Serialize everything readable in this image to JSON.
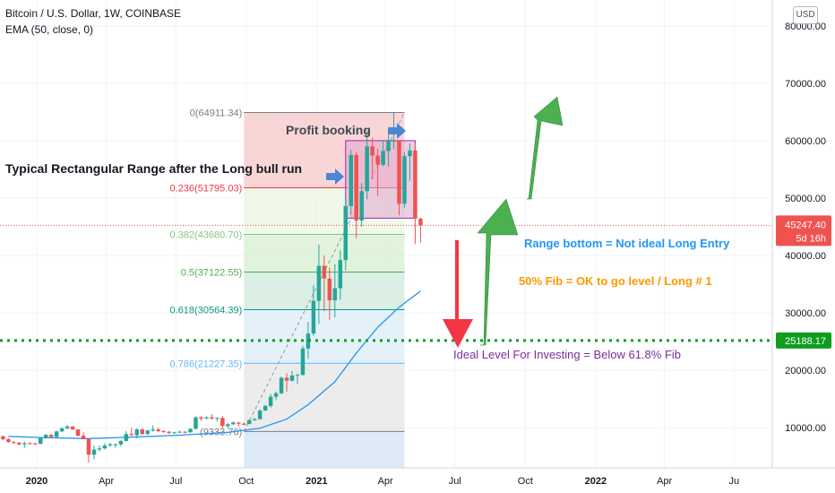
{
  "header": {
    "title": "Bitcoin / U.S. Dollar, 1W, COINBASE",
    "indicator": "EMA (50, close, 0)",
    "currency": "USD"
  },
  "colors": {
    "up": "#26a69a",
    "down": "#ef5350",
    "ema": "#2196f3",
    "green_arrow": "#4caf50",
    "red_arrow": "#f23645",
    "blue_note": "#2196f3",
    "orange_note": "#ff9800",
    "purple_note": "#7b2d9e",
    "ideal_line": "#0f9d1f"
  },
  "chart_data": {
    "type": "candlestick",
    "y_axis": {
      "range": [
        3000,
        84500
      ],
      "ticks": [
        10000,
        20000,
        30000,
        40000,
        50000,
        60000,
        70000,
        80000
      ],
      "tick_labels": [
        "10000.00",
        "20000.00",
        "30000.00",
        "40000.00",
        "50000.00",
        "60000.00",
        "70000.00",
        "80000.00"
      ]
    },
    "x_axis": {
      "ticks": [
        {
          "label": "2020",
          "date": "2020-01-01",
          "bold": true
        },
        {
          "label": "Apr",
          "date": "2020-04-01"
        },
        {
          "label": "Jul",
          "date": "2020-07-01"
        },
        {
          "label": "Oct",
          "date": "2020-10-01"
        },
        {
          "label": "2021",
          "date": "2021-01-01",
          "bold": true
        },
        {
          "label": "Apr",
          "date": "2021-04-01"
        },
        {
          "label": "Jul",
          "date": "2021-07-01"
        },
        {
          "label": "Oct",
          "date": "2021-10-01"
        },
        {
          "label": "2022",
          "date": "2022-01-01",
          "bold": true
        },
        {
          "label": "Apr",
          "date": "2022-04-01"
        },
        {
          "label": "Ju",
          "date": "2022-07-01"
        }
      ]
    },
    "price_label": {
      "value": "45247.40",
      "sub": "5d 16h"
    },
    "ideal_level": {
      "value": 25188.17,
      "label": "25188.17"
    },
    "fib": {
      "start_date": "2020-09-28",
      "end_date": "2021-04-26",
      "levels": [
        {
          "ratio": "0",
          "price": 64911.34,
          "label": "0(64911.34)",
          "color": "#787b86"
        },
        {
          "ratio": "0.236",
          "price": 51795.03,
          "label": "0.236(51795.03)",
          "color": "#f23645"
        },
        {
          "ratio": "0.382",
          "price": 43680.7,
          "label": "0.382(43680.70)",
          "color": "#81c784"
        },
        {
          "ratio": "0.5",
          "price": 37122.55,
          "label": "0.5(37122.55)",
          "color": "#4caf50"
        },
        {
          "ratio": "0.618",
          "price": 30564.39,
          "label": "0.618(30564.39)",
          "color": "#089981"
        },
        {
          "ratio": "0.786",
          "price": 21227.35,
          "label": "0.786(21227.35)",
          "color": "#64b5f6"
        },
        {
          "ratio": "1",
          "price": 9333.76,
          "label": "(9333.76)",
          "color": "#787b86"
        }
      ]
    },
    "range_box": {
      "start_date": "2021-02-08",
      "end_date": "2021-05-10",
      "top": 60000,
      "bottom": 46500
    },
    "ema": [
      [
        "2019-11-25",
        8500
      ],
      [
        "2020-01-06",
        8300
      ],
      [
        "2020-03-09",
        8100
      ],
      [
        "2020-05-04",
        8350
      ],
      [
        "2020-07-06",
        8700
      ],
      [
        "2020-09-07",
        9200
      ],
      [
        "2020-10-19",
        9900
      ],
      [
        "2020-11-23",
        11500
      ],
      [
        "2020-12-21",
        14000
      ],
      [
        "2021-01-25",
        18000
      ],
      [
        "2021-02-22",
        23000
      ],
      [
        "2021-03-22",
        27500
      ],
      [
        "2021-04-19",
        31000
      ],
      [
        "2021-05-17",
        33800
      ]
    ],
    "candles": [
      [
        "2019-11-18",
        8500,
        8600,
        7800,
        8000
      ],
      [
        "2019-11-25",
        8000,
        8200,
        7400,
        7500
      ],
      [
        "2019-12-02",
        7500,
        7700,
        7200,
        7400
      ],
      [
        "2019-12-09",
        7400,
        7500,
        6900,
        7100
      ],
      [
        "2019-12-16",
        7100,
        7600,
        6500,
        7300
      ],
      [
        "2019-12-23",
        7300,
        7500,
        7100,
        7250
      ],
      [
        "2019-12-30",
        7250,
        7400,
        7000,
        7200
      ],
      [
        "2020-01-06",
        7200,
        8400,
        7100,
        8200
      ],
      [
        "2020-01-13",
        8200,
        8900,
        8100,
        8750
      ],
      [
        "2020-01-20",
        8750,
        8900,
        8300,
        8400
      ],
      [
        "2020-01-27",
        8400,
        9500,
        8300,
        9350
      ],
      [
        "2020-02-03",
        9350,
        10100,
        9200,
        9900
      ],
      [
        "2020-02-10",
        9900,
        10500,
        9700,
        10200
      ],
      [
        "2020-02-17",
        10200,
        10300,
        9600,
        9700
      ],
      [
        "2020-02-24",
        9700,
        9800,
        8500,
        8600
      ],
      [
        "2020-03-02",
        8600,
        9200,
        8500,
        8000
      ],
      [
        "2020-03-09",
        8000,
        8100,
        3900,
        5300
      ],
      [
        "2020-03-16",
        5300,
        6900,
        4500,
        6200
      ],
      [
        "2020-03-23",
        6200,
        6900,
        5900,
        6400
      ],
      [
        "2020-03-30",
        6400,
        7300,
        6200,
        6900
      ],
      [
        "2020-04-06",
        6900,
        7400,
        6700,
        7100
      ],
      [
        "2020-04-13",
        7100,
        7300,
        6500,
        7100
      ],
      [
        "2020-04-20",
        7100,
        7800,
        6800,
        7700
      ],
      [
        "2020-04-27",
        7700,
        9400,
        7600,
        8900
      ],
      [
        "2020-05-04",
        8900,
        10000,
        8600,
        8700
      ],
      [
        "2020-05-11",
        8700,
        9900,
        8100,
        9700
      ],
      [
        "2020-05-18",
        9700,
        9900,
        8800,
        8900
      ],
      [
        "2020-05-25",
        8900,
        9700,
        8700,
        9500
      ],
      [
        "2020-06-01",
        9500,
        10400,
        9300,
        9700
      ],
      [
        "2020-06-08",
        9700,
        10000,
        9200,
        9400
      ],
      [
        "2020-06-15",
        9400,
        9600,
        9100,
        9300
      ],
      [
        "2020-06-22",
        9300,
        9400,
        8900,
        9100
      ],
      [
        "2020-06-29",
        9100,
        9300,
        8900,
        9200
      ],
      [
        "2020-07-06",
        9200,
        9500,
        9100,
        9300
      ],
      [
        "2020-07-13",
        9300,
        9400,
        9000,
        9200
      ],
      [
        "2020-07-20",
        9200,
        9900,
        9100,
        9800
      ],
      [
        "2020-07-27",
        9800,
        12000,
        9700,
        11800
      ],
      [
        "2020-08-03",
        11800,
        12000,
        11200,
        11600
      ],
      [
        "2020-08-10",
        11600,
        12000,
        11500,
        11800
      ],
      [
        "2020-08-17",
        11800,
        12400,
        11400,
        11600
      ],
      [
        "2020-08-24",
        11600,
        11800,
        11100,
        11700
      ],
      [
        "2020-08-31",
        11700,
        12000,
        9900,
        10300
      ],
      [
        "2020-09-07",
        10300,
        10800,
        9900,
        10600
      ],
      [
        "2020-09-14",
        10600,
        11100,
        10500,
        10900
      ],
      [
        "2020-09-21",
        10900,
        11000,
        10200,
        10700
      ],
      [
        "2020-09-28",
        10700,
        10900,
        10400,
        10650
      ],
      [
        "2020-10-05",
        10650,
        11500,
        10600,
        11300
      ],
      [
        "2020-10-12",
        11300,
        11700,
        11200,
        11500
      ],
      [
        "2020-10-19",
        11500,
        13200,
        11400,
        13000
      ],
      [
        "2020-10-26",
        13000,
        14000,
        12900,
        13800
      ],
      [
        "2020-11-02",
        13800,
        15900,
        13500,
        15400
      ],
      [
        "2020-11-09",
        15400,
        16300,
        14800,
        16000
      ],
      [
        "2020-11-16",
        16000,
        18900,
        15800,
        18700
      ],
      [
        "2020-11-23",
        18700,
        19500,
        16300,
        18200
      ],
      [
        "2020-11-30",
        18200,
        19900,
        18000,
        19100
      ],
      [
        "2020-12-07",
        19100,
        19400,
        17600,
        19200
      ],
      [
        "2020-12-14",
        19200,
        24300,
        19100,
        23800
      ],
      [
        "2020-12-21",
        23800,
        28400,
        22000,
        26400
      ],
      [
        "2020-12-28",
        26400,
        34800,
        26000,
        32100
      ],
      [
        "2021-01-04",
        32100,
        41900,
        28100,
        38200
      ],
      [
        "2021-01-11",
        38200,
        40000,
        30300,
        36000
      ],
      [
        "2021-01-18",
        36000,
        37900,
        28800,
        32200
      ],
      [
        "2021-01-25",
        32200,
        38500,
        29200,
        34300
      ],
      [
        "2021-02-01",
        34300,
        40900,
        32300,
        39200
      ],
      [
        "2021-02-08",
        39200,
        49700,
        37400,
        48600
      ],
      [
        "2021-02-15",
        48600,
        58400,
        47000,
        57500
      ],
      [
        "2021-02-22",
        57500,
        58000,
        43000,
        46100
      ],
      [
        "2021-03-01",
        46100,
        52600,
        45000,
        51200
      ],
      [
        "2021-03-08",
        51200,
        61800,
        49800,
        59000
      ],
      [
        "2021-03-15",
        59000,
        60500,
        53300,
        57400
      ],
      [
        "2021-03-22",
        57400,
        58600,
        50400,
        55800
      ],
      [
        "2021-03-29",
        55800,
        60000,
        55500,
        58200
      ],
      [
        "2021-04-05",
        58200,
        61200,
        55500,
        60000
      ],
      [
        "2021-04-12",
        60000,
        64900,
        58600,
        60000
      ],
      [
        "2021-04-19",
        60000,
        60000,
        47000,
        49000
      ],
      [
        "2021-04-26",
        49000,
        58000,
        48300,
        57300
      ],
      [
        "2021-05-03",
        57300,
        59500,
        53000,
        58300
      ],
      [
        "2021-05-10",
        58300,
        59600,
        42000,
        46400
      ],
      [
        "2021-05-17",
        46400,
        46600,
        42200,
        45247
      ]
    ]
  },
  "annotations": {
    "profit_booking": "Profit booking",
    "typical_range": "Typical Rectangular Range after the Long bull run",
    "range_bottom": "Range bottom = Not ideal Long Entry",
    "fib_50": "50% Fib = OK to go level / Long # 1",
    "ideal_level": "Ideal Level For Investing = Below 61.8% Fib"
  }
}
